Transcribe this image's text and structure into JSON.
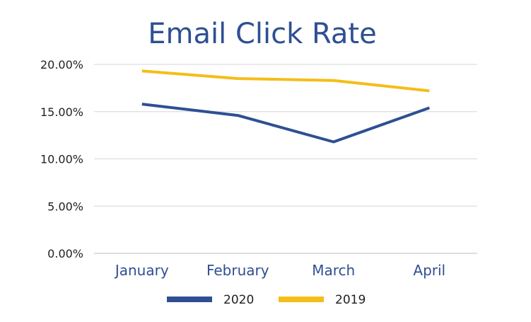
{
  "chart_data": {
    "type": "line",
    "title": "Email Click Rate",
    "categories": [
      "January",
      "February",
      "March",
      "April"
    ],
    "y_ticks": [
      "0.00%",
      "5.00%",
      "10.00%",
      "15.00%",
      "20.00%"
    ],
    "ylim": [
      0,
      20
    ],
    "grid": true,
    "legend_position": "bottom",
    "series": [
      {
        "name": "2020",
        "color": "#2e4f93",
        "values": [
          15.8,
          14.6,
          11.8,
          15.4
        ]
      },
      {
        "name": "2019",
        "color": "#f5bd18",
        "values": [
          19.3,
          18.5,
          18.3,
          17.2
        ]
      }
    ],
    "colors": {
      "title": "#2e4f93",
      "category_labels": "#2e4f93",
      "tick_labels": "#222222",
      "gridlines": "#d6d6d6",
      "axis": "#bcbcbc"
    }
  }
}
